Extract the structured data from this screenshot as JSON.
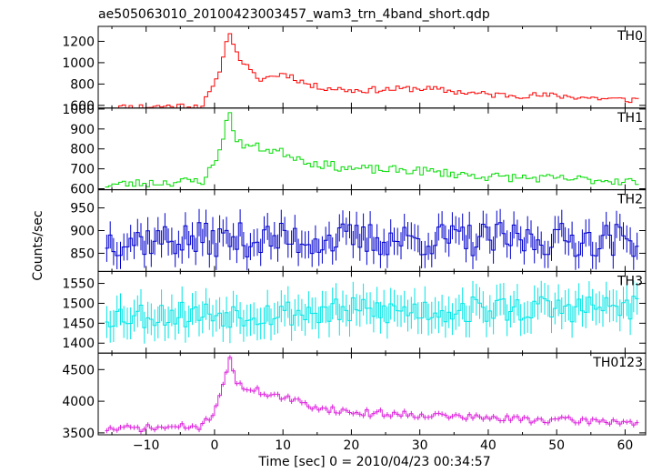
{
  "chart_data": {
    "type": "line",
    "title": "ae505063010_20100423003457_wam3_trn_4band_short.qdp",
    "xlabel": "Time [sec] 0 = 2010/04/23 00:34:57",
    "ylabel": "Counts/sec",
    "xlim": [
      -17,
      63
    ],
    "xticks": [
      -10,
      0,
      10,
      20,
      30,
      40,
      50,
      60
    ],
    "xtick_labels": [
      "−10",
      "0",
      "10",
      "20",
      "30",
      "40",
      "50",
      "60"
    ],
    "bin_width": 0.5,
    "panels": [
      {
        "name": "TH0",
        "color": "#ff0000",
        "ylim": [
          575,
          1340
        ],
        "yticks": [
          600,
          800,
          1000,
          1200
        ],
        "ytick_labels": [
          "600",
          "800",
          "1000",
          "1200"
        ],
        "bins": [
          [
            -16,
            580
          ],
          [
            -2,
            600
          ],
          [
            0,
            820
          ],
          [
            2,
            1300
          ],
          [
            3,
            1080
          ],
          [
            6,
            840
          ],
          [
            10,
            900
          ],
          [
            14,
            780
          ],
          [
            20,
            740
          ],
          [
            30,
            760
          ],
          [
            40,
            700
          ],
          [
            50,
            690
          ],
          [
            60,
            650
          ],
          [
            62,
            660
          ]
        ],
        "values": [
          {
            "base": 1,
            "amp": 0
          }
        ],
        "error": 0,
        "seed": 11,
        "noise": 30,
        "show_errors": false
      },
      {
        "name": "TH1",
        "color": "#00dd00",
        "ylim": [
          595,
          1005
        ],
        "yticks": [
          600,
          700,
          800,
          900,
          1000
        ],
        "ytick_labels": [
          "600",
          "700",
          "800",
          "900",
          "1000"
        ],
        "bins": [
          [
            -16,
            620
          ],
          [
            -2,
            640
          ],
          [
            0,
            740
          ],
          [
            2,
            990
          ],
          [
            3,
            830
          ],
          [
            10,
            780
          ],
          [
            14,
            730
          ],
          [
            20,
            700
          ],
          [
            30,
            690
          ],
          [
            40,
            660
          ],
          [
            50,
            650
          ],
          [
            60,
            640
          ],
          [
            62,
            630
          ]
        ],
        "error": 0,
        "seed": 23,
        "noise": 22,
        "show_errors": false
      },
      {
        "name": "TH2",
        "color": "#0000cc",
        "ylim": [
          810,
          990
        ],
        "yticks": [
          850,
          900,
          950
        ],
        "ytick_labels": [
          "850",
          "900",
          "950"
        ],
        "bins": [
          [
            -16,
            880
          ],
          [
            62,
            880
          ]
        ],
        "error": 30,
        "seed": 37,
        "noise": 38,
        "show_errors": true
      },
      {
        "name": "TH3",
        "color": "#00e5e5",
        "ylim": [
          1375,
          1580
        ],
        "yticks": [
          1400,
          1450,
          1500,
          1550
        ],
        "ytick_labels": [
          "1400",
          "1450",
          "1500",
          "1550"
        ],
        "bins": [
          [
            -16,
            1470
          ],
          [
            62,
            1490
          ]
        ],
        "error": 40,
        "seed": 53,
        "noise": 35,
        "show_errors": true
      },
      {
        "name": "TH0123",
        "color": "#dd22dd",
        "ylim": [
          3470,
          4760
        ],
        "yticks": [
          3500,
          4000,
          4500
        ],
        "ytick_labels": [
          "3500",
          "4000",
          "4500"
        ],
        "bins": [
          [
            -16,
            3560
          ],
          [
            -2,
            3600
          ],
          [
            0,
            3900
          ],
          [
            2,
            4700
          ],
          [
            3,
            4250
          ],
          [
            10,
            4050
          ],
          [
            14,
            3920
          ],
          [
            20,
            3820
          ],
          [
            30,
            3790
          ],
          [
            40,
            3730
          ],
          [
            50,
            3700
          ],
          [
            60,
            3680
          ],
          [
            62,
            3620
          ]
        ],
        "error": 40,
        "seed": 71,
        "noise": 55,
        "show_errors": true
      }
    ]
  }
}
